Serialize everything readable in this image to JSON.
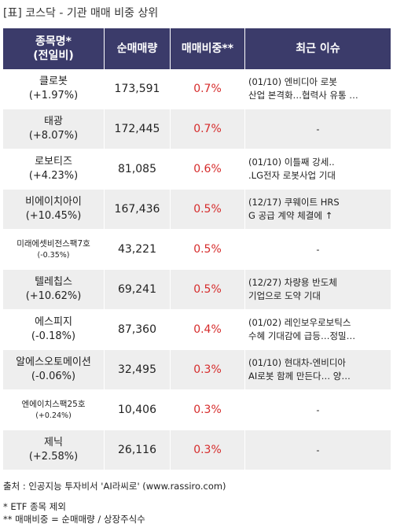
{
  "title": "[표] 코스닥 - 기관 매매 비중 상위",
  "headers": {
    "name_line1": "종목명*",
    "name_line2": "(전일비)",
    "volume": "순매매량",
    "ratio": "매매비중**",
    "issue": "최근 이슈"
  },
  "rows": [
    {
      "name": "클로봇",
      "change": "(+1.97%)",
      "volume": "173,591",
      "ratio": "0.7%",
      "issue1": "(01/10) 엔비디아 로봇",
      "issue2": "산업 본격화…협력사 유통 …"
    },
    {
      "name": "태광",
      "change": "(+8.07%)",
      "volume": "172,445",
      "ratio": "0.7%",
      "issue1": "-",
      "issue2": ""
    },
    {
      "name": "로보티즈",
      "change": "(+4.23%)",
      "volume": "81,085",
      "ratio": "0.6%",
      "issue1": "(01/10) 이틀째 강세..",
      "issue2": ".LG전자 로봇사업 기대"
    },
    {
      "name": "비에이치아이",
      "change": "(+10.45%)",
      "volume": "167,436",
      "ratio": "0.5%",
      "issue1": "(12/17) 쿠웨이트 HRS",
      "issue2": "G 공급 계약 체결에 ↑"
    },
    {
      "name": "미래에셋비전스팩7호",
      "change": "(-0.35%)",
      "volume": "43,221",
      "ratio": "0.5%",
      "issue1": "-",
      "issue2": ""
    },
    {
      "name": "텔레칩스",
      "change": "(+10.62%)",
      "volume": "69,241",
      "ratio": "0.5%",
      "issue1": "(12/27) 차량용 반도체",
      "issue2": "기업으로 도약 기대"
    },
    {
      "name": "에스피지",
      "change": "(-0.18%)",
      "volume": "87,360",
      "ratio": "0.4%",
      "issue1": "(01/02) 레인보우로보틱스",
      "issue2": "수혜 기대감에 급등…정밀…"
    },
    {
      "name": "알에스오토메이션",
      "change": "(-0.06%)",
      "volume": "32,495",
      "ratio": "0.3%",
      "issue1": "(01/10) 현대차-엔비디아",
      "issue2": "AI로봇 함께 만든다… 양…"
    },
    {
      "name": "엔에이치스팩25호",
      "change": "(+0.24%)",
      "volume": "10,406",
      "ratio": "0.3%",
      "issue1": "-",
      "issue2": ""
    },
    {
      "name": "제닉",
      "change": "(+2.58%)",
      "volume": "26,116",
      "ratio": "0.3%",
      "issue1": "-",
      "issue2": ""
    }
  ],
  "footer": {
    "source": "출처 : 인공지능 투자비서 'AI라씨로' (www.rassiro.com)",
    "note1": "* ETF 종목 제외",
    "note2": "** 매매비중 = 순매매량 / 상장주식수"
  },
  "colors": {
    "header_bg": "#3b3b6a",
    "ratio_text": "#d62b2b",
    "stripe_bg": "#eeeeee"
  }
}
